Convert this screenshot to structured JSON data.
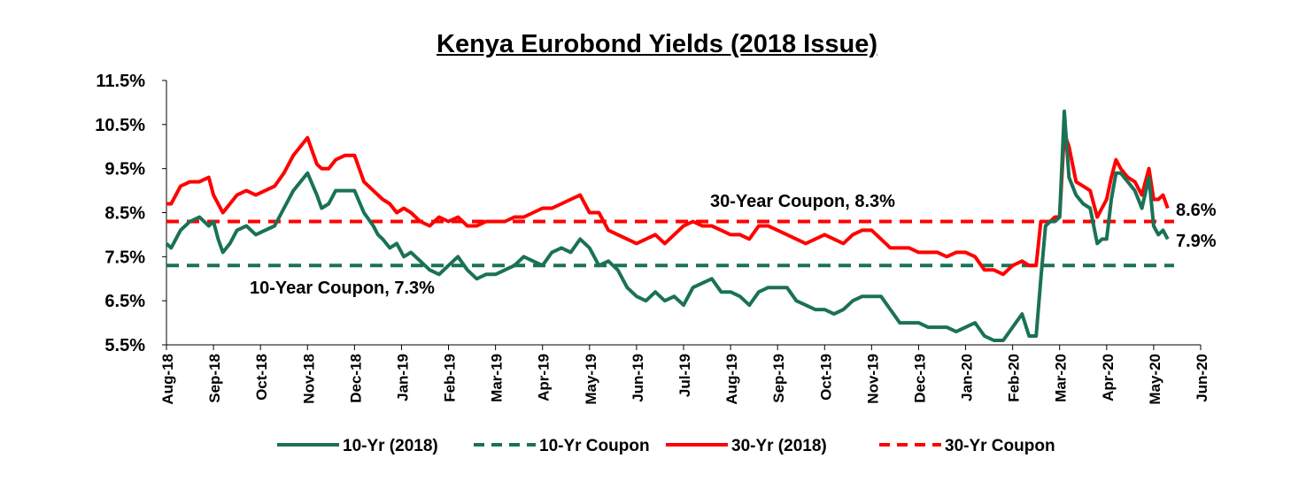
{
  "chart_data": {
    "type": "line",
    "title": "Kenya Eurobond Yields (2018 Issue)",
    "xlabel": "",
    "ylabel": "",
    "ylim": [
      5.5,
      11.5
    ],
    "grid": false,
    "legend_position": "bottom",
    "yticks": [
      "11.5%",
      "10.5%",
      "9.5%",
      "8.5%",
      "7.5%",
      "6.5%",
      "5.5%"
    ],
    "ytick_values": [
      11.5,
      10.5,
      9.5,
      8.5,
      7.5,
      6.5,
      5.5
    ],
    "xticks": [
      "Aug-18",
      "Sep-18",
      "Oct-18",
      "Nov-18",
      "Dec-18",
      "Jan-19",
      "Feb-19",
      "Mar-19",
      "Apr-19",
      "May-19",
      "Jun-19",
      "Jul-19",
      "Aug-19",
      "Sep-19",
      "Oct-19",
      "Nov-19",
      "Dec-19",
      "Jan-20",
      "Feb-20",
      "Mar-20",
      "Apr-20",
      "May-20",
      "Jun-20"
    ],
    "colors": {
      "ten_year": "#1a7256",
      "thirty_year": "#ff0000"
    },
    "series": [
      {
        "name": "10-Yr (2018)",
        "style": "solid",
        "color": "#1a7256",
        "x_month_index": [
          0,
          0.1,
          0.3,
          0.5,
          0.7,
          0.9,
          1.0,
          1.1,
          1.2,
          1.35,
          1.5,
          1.7,
          1.9,
          2.1,
          2.3,
          2.5,
          2.7,
          3.0,
          3.2,
          3.3,
          3.45,
          3.6,
          3.8,
          4.0,
          4.2,
          4.4,
          4.5,
          4.6,
          4.75,
          4.9,
          5.05,
          5.2,
          5.4,
          5.6,
          5.8,
          6.0,
          6.2,
          6.4,
          6.6,
          6.8,
          7.0,
          7.2,
          7.4,
          7.6,
          7.8,
          8.0,
          8.2,
          8.4,
          8.6,
          8.8,
          9.0,
          9.2,
          9.4,
          9.6,
          9.8,
          10.0,
          10.2,
          10.4,
          10.6,
          10.8,
          11.0,
          11.2,
          11.4,
          11.6,
          11.8,
          12.0,
          12.2,
          12.4,
          12.6,
          12.8,
          13.0,
          13.2,
          13.4,
          13.6,
          13.8,
          14.0,
          14.2,
          14.4,
          14.6,
          14.8,
          15.0,
          15.2,
          15.4,
          15.6,
          15.8,
          16.0,
          16.2,
          16.4,
          16.6,
          16.8,
          17.0,
          17.2,
          17.4,
          17.6,
          17.8,
          18.0,
          18.2,
          18.35,
          18.5,
          18.6,
          18.7,
          18.8,
          18.9,
          19.0,
          19.1,
          19.2,
          19.35,
          19.5,
          19.65,
          19.8,
          19.9,
          20.0,
          20.1,
          20.2,
          20.3,
          20.45,
          20.6,
          20.75,
          20.9,
          21.0,
          21.1,
          21.2,
          21.3
        ],
        "values": [
          7.8,
          7.7,
          8.1,
          8.3,
          8.4,
          8.2,
          8.3,
          7.9,
          7.6,
          7.8,
          8.1,
          8.2,
          8.0,
          8.1,
          8.2,
          8.6,
          9.0,
          9.4,
          8.9,
          8.6,
          8.7,
          9.0,
          9.0,
          9.0,
          8.5,
          8.2,
          8.0,
          7.9,
          7.7,
          7.8,
          7.5,
          7.6,
          7.4,
          7.2,
          7.1,
          7.3,
          7.5,
          7.2,
          7.0,
          7.1,
          7.1,
          7.2,
          7.3,
          7.5,
          7.4,
          7.3,
          7.6,
          7.7,
          7.6,
          7.9,
          7.7,
          7.3,
          7.4,
          7.2,
          6.8,
          6.6,
          6.5,
          6.7,
          6.5,
          6.6,
          6.4,
          6.8,
          6.9,
          7.0,
          6.7,
          6.7,
          6.6,
          6.4,
          6.7,
          6.8,
          6.8,
          6.8,
          6.5,
          6.4,
          6.3,
          6.3,
          6.2,
          6.3,
          6.5,
          6.6,
          6.6,
          6.6,
          6.3,
          6.0,
          6.0,
          6.0,
          5.9,
          5.9,
          5.9,
          5.8,
          5.9,
          6.0,
          5.7,
          5.6,
          5.6,
          5.9,
          6.2,
          5.7,
          5.7,
          7.0,
          8.2,
          8.3,
          8.3,
          8.4,
          10.8,
          9.3,
          8.9,
          8.7,
          8.6,
          7.8,
          7.9,
          7.9,
          8.8,
          9.4,
          9.4,
          9.2,
          9.0,
          8.6,
          9.3,
          8.2,
          8.0,
          8.1,
          7.9
        ]
      },
      {
        "name": "10-Yr Coupon",
        "style": "dashed",
        "color": "#1a7256",
        "constant": 7.3
      },
      {
        "name": "30-Yr (2018)",
        "style": "solid",
        "color": "#ff0000",
        "x_month_index": [
          0,
          0.1,
          0.3,
          0.5,
          0.7,
          0.9,
          1.0,
          1.1,
          1.2,
          1.35,
          1.5,
          1.7,
          1.9,
          2.1,
          2.3,
          2.5,
          2.7,
          3.0,
          3.2,
          3.3,
          3.45,
          3.6,
          3.8,
          4.0,
          4.2,
          4.4,
          4.5,
          4.6,
          4.75,
          4.9,
          5.05,
          5.2,
          5.4,
          5.6,
          5.8,
          6.0,
          6.2,
          6.4,
          6.6,
          6.8,
          7.0,
          7.2,
          7.4,
          7.6,
          7.8,
          8.0,
          8.2,
          8.4,
          8.6,
          8.8,
          9.0,
          9.2,
          9.4,
          9.6,
          9.8,
          10.0,
          10.2,
          10.4,
          10.6,
          10.8,
          11.0,
          11.2,
          11.4,
          11.6,
          11.8,
          12.0,
          12.2,
          12.4,
          12.6,
          12.8,
          13.0,
          13.2,
          13.4,
          13.6,
          13.8,
          14.0,
          14.2,
          14.4,
          14.6,
          14.8,
          15.0,
          15.2,
          15.4,
          15.6,
          15.8,
          16.0,
          16.2,
          16.4,
          16.6,
          16.8,
          17.0,
          17.2,
          17.4,
          17.6,
          17.8,
          18.0,
          18.2,
          18.35,
          18.5,
          18.6,
          18.7,
          18.8,
          18.9,
          19.0,
          19.1,
          19.2,
          19.35,
          19.5,
          19.65,
          19.8,
          19.9,
          20.0,
          20.1,
          20.2,
          20.3,
          20.45,
          20.6,
          20.75,
          20.9,
          21.0,
          21.1,
          21.2,
          21.3
        ],
        "values": [
          8.7,
          8.7,
          9.1,
          9.2,
          9.2,
          9.3,
          8.9,
          8.7,
          8.5,
          8.7,
          8.9,
          9.0,
          8.9,
          9.0,
          9.1,
          9.4,
          9.8,
          10.2,
          9.6,
          9.5,
          9.5,
          9.7,
          9.8,
          9.8,
          9.2,
          9.0,
          8.9,
          8.8,
          8.7,
          8.5,
          8.6,
          8.5,
          8.3,
          8.2,
          8.4,
          8.3,
          8.4,
          8.2,
          8.2,
          8.3,
          8.3,
          8.3,
          8.4,
          8.4,
          8.5,
          8.6,
          8.6,
          8.7,
          8.8,
          8.9,
          8.5,
          8.5,
          8.1,
          8.0,
          7.9,
          7.8,
          7.9,
          8.0,
          7.8,
          8.0,
          8.2,
          8.3,
          8.2,
          8.2,
          8.1,
          8.0,
          8.0,
          7.9,
          8.2,
          8.2,
          8.1,
          8.0,
          7.9,
          7.8,
          7.9,
          8.0,
          7.9,
          7.8,
          8.0,
          8.1,
          8.1,
          7.9,
          7.7,
          7.7,
          7.7,
          7.6,
          7.6,
          7.6,
          7.5,
          7.6,
          7.6,
          7.5,
          7.2,
          7.2,
          7.1,
          7.3,
          7.4,
          7.3,
          7.3,
          8.3,
          8.3,
          8.3,
          8.4,
          8.4,
          10.3,
          10.0,
          9.2,
          9.1,
          9.0,
          8.4,
          8.6,
          8.8,
          9.3,
          9.7,
          9.5,
          9.3,
          9.2,
          8.9,
          9.5,
          8.8,
          8.8,
          8.9,
          8.6
        ]
      },
      {
        "name": "30-Yr Coupon",
        "style": "dashed",
        "color": "#ff0000",
        "constant": 8.3
      }
    ],
    "annotations": [
      {
        "text": "30-Year Coupon, 8.3%"
      },
      {
        "text": "10-Year Coupon, 7.3%"
      },
      {
        "text": "8.6%"
      },
      {
        "text": "7.9%"
      }
    ]
  }
}
